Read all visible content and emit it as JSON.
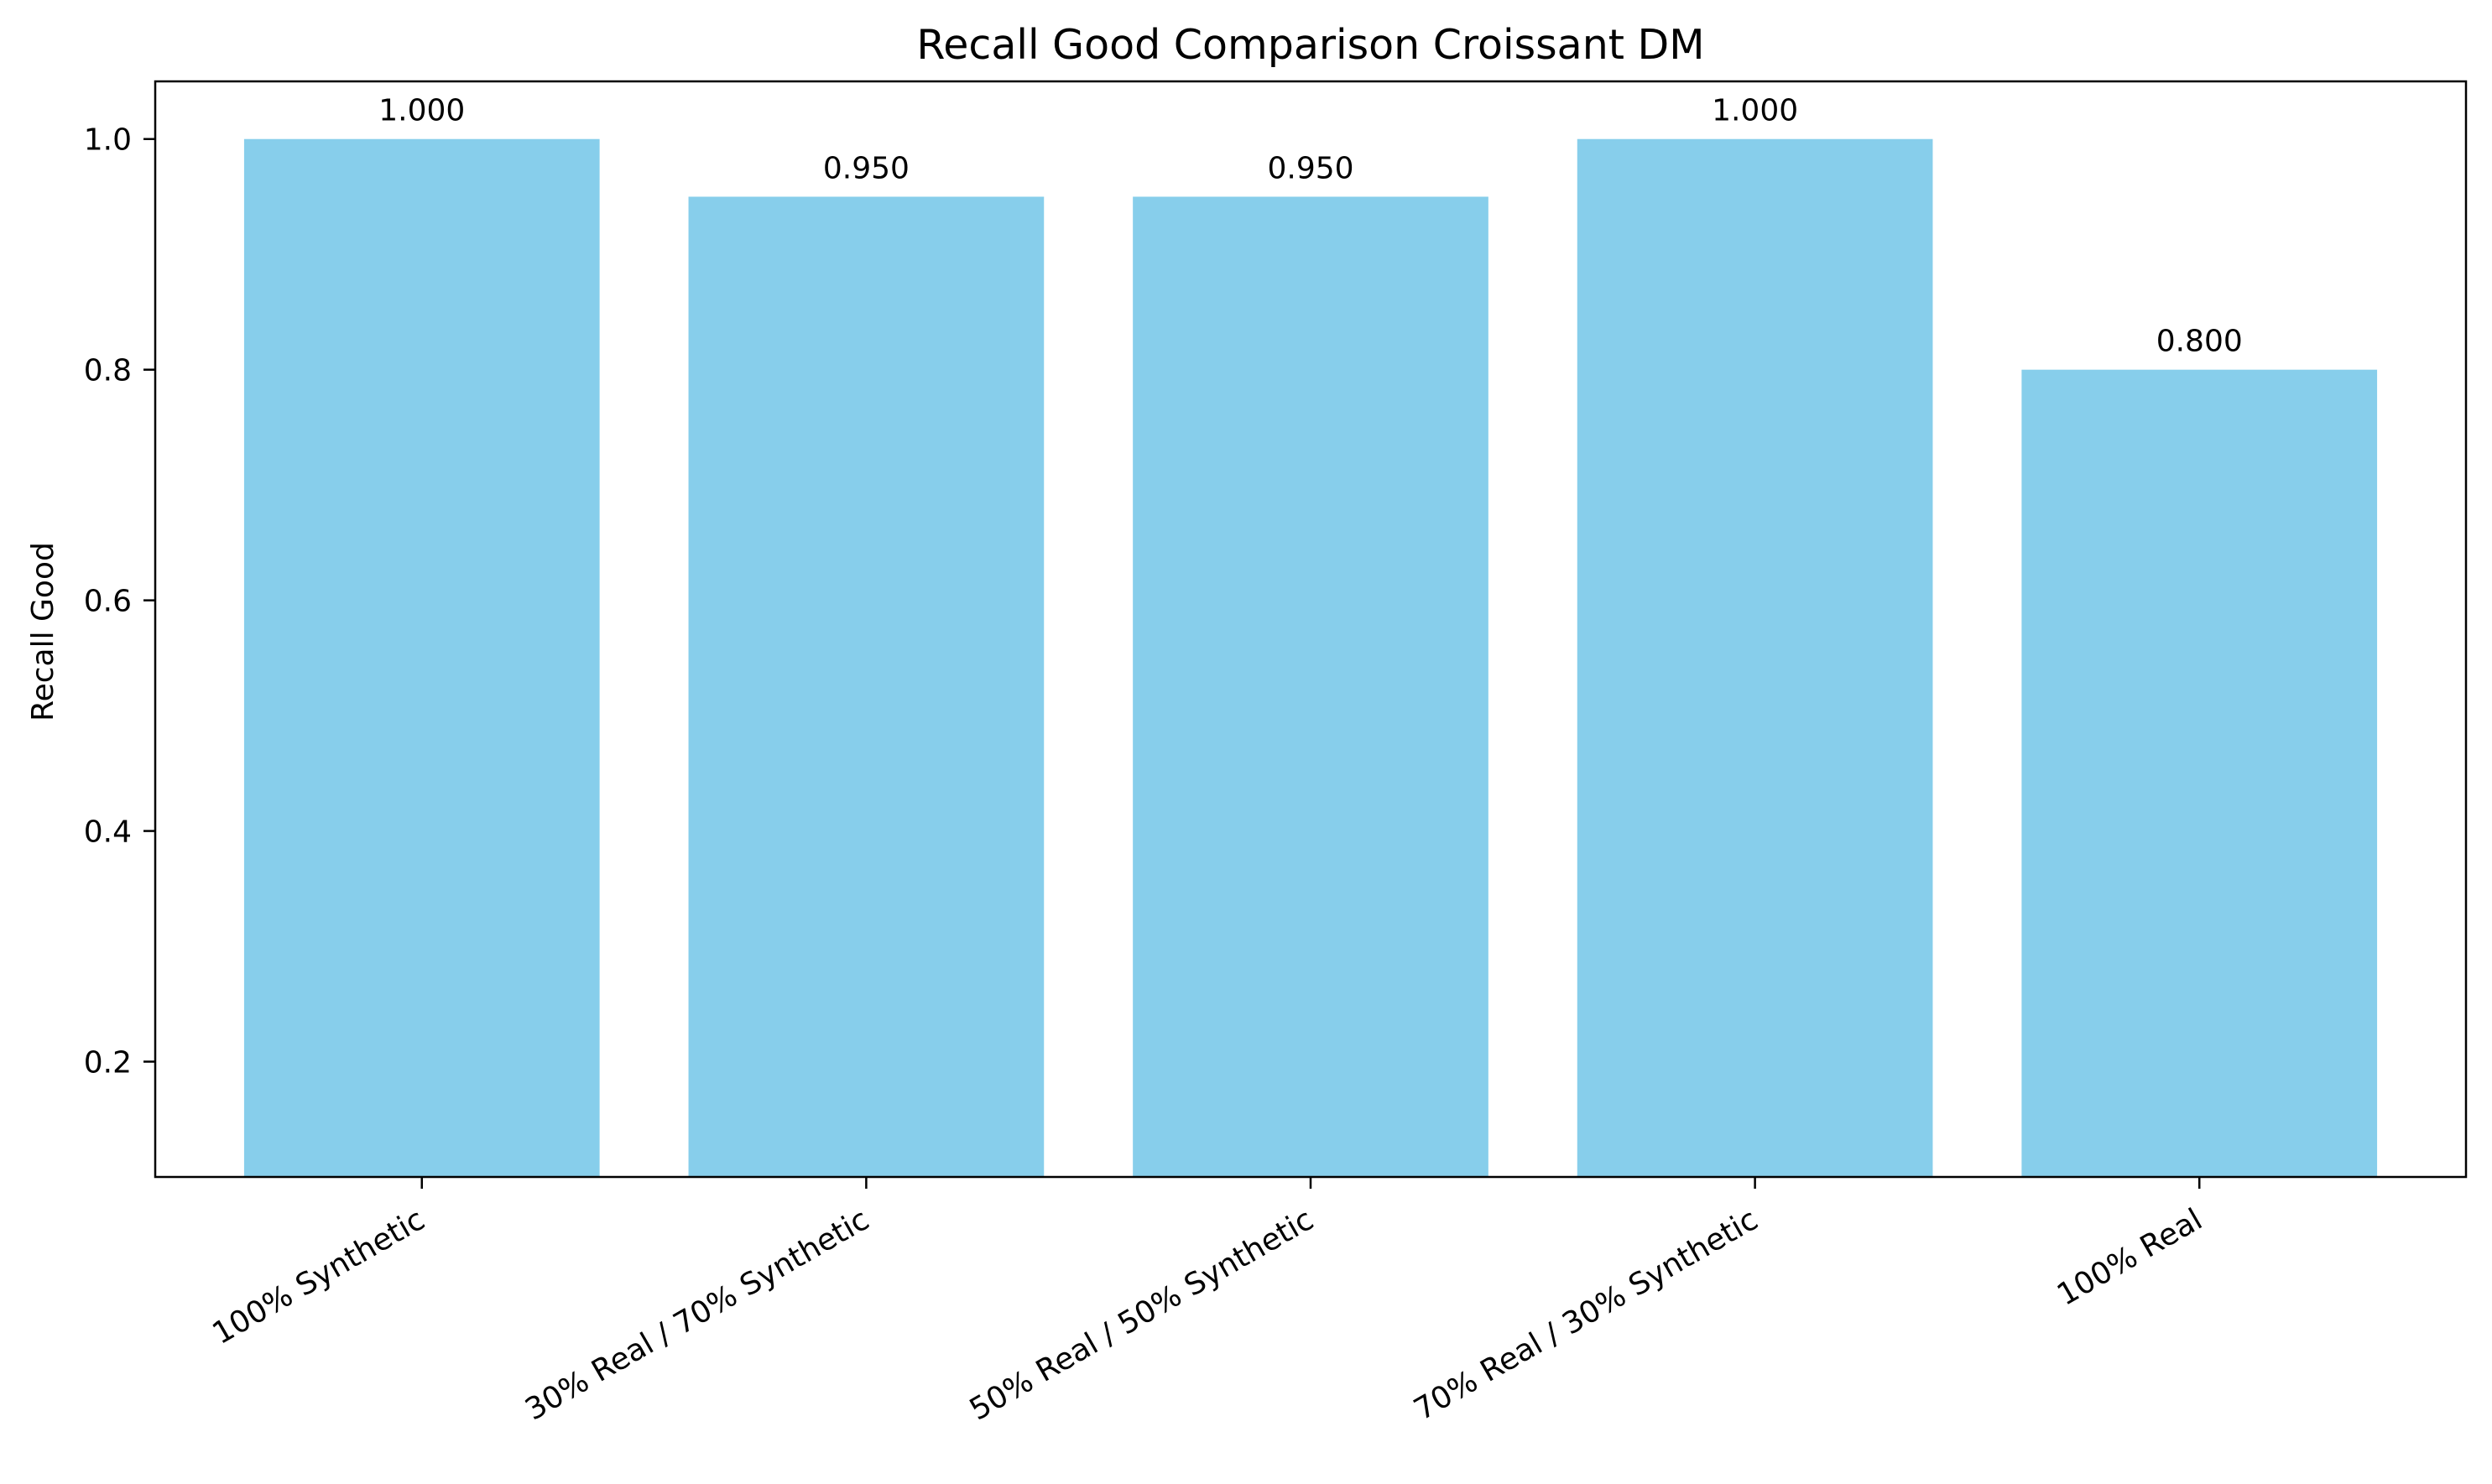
{
  "chart_data": {
    "type": "bar",
    "title": "Recall Good Comparison Croissant DM",
    "xlabel": "",
    "ylabel": "Recall Good",
    "categories": [
      "100% Synthetic",
      "30% Real / 70% Synthetic",
      "50% Real / 50% Synthetic",
      "70% Real / 30% Synthetic",
      "100% Real"
    ],
    "values": [
      1.0,
      0.95,
      0.95,
      1.0,
      0.8
    ],
    "value_labels": [
      "1.000",
      "0.950",
      "0.950",
      "1.000",
      "0.800"
    ],
    "ylim": [
      0.1,
      1.05
    ],
    "yticks": [
      0.2,
      0.4,
      0.6,
      0.8,
      1.0
    ],
    "ytick_labels": [
      "0.2",
      "0.4",
      "0.6",
      "0.8",
      "1.0"
    ],
    "bar_color": "#87CEEB",
    "grid": false,
    "legend": "none"
  }
}
